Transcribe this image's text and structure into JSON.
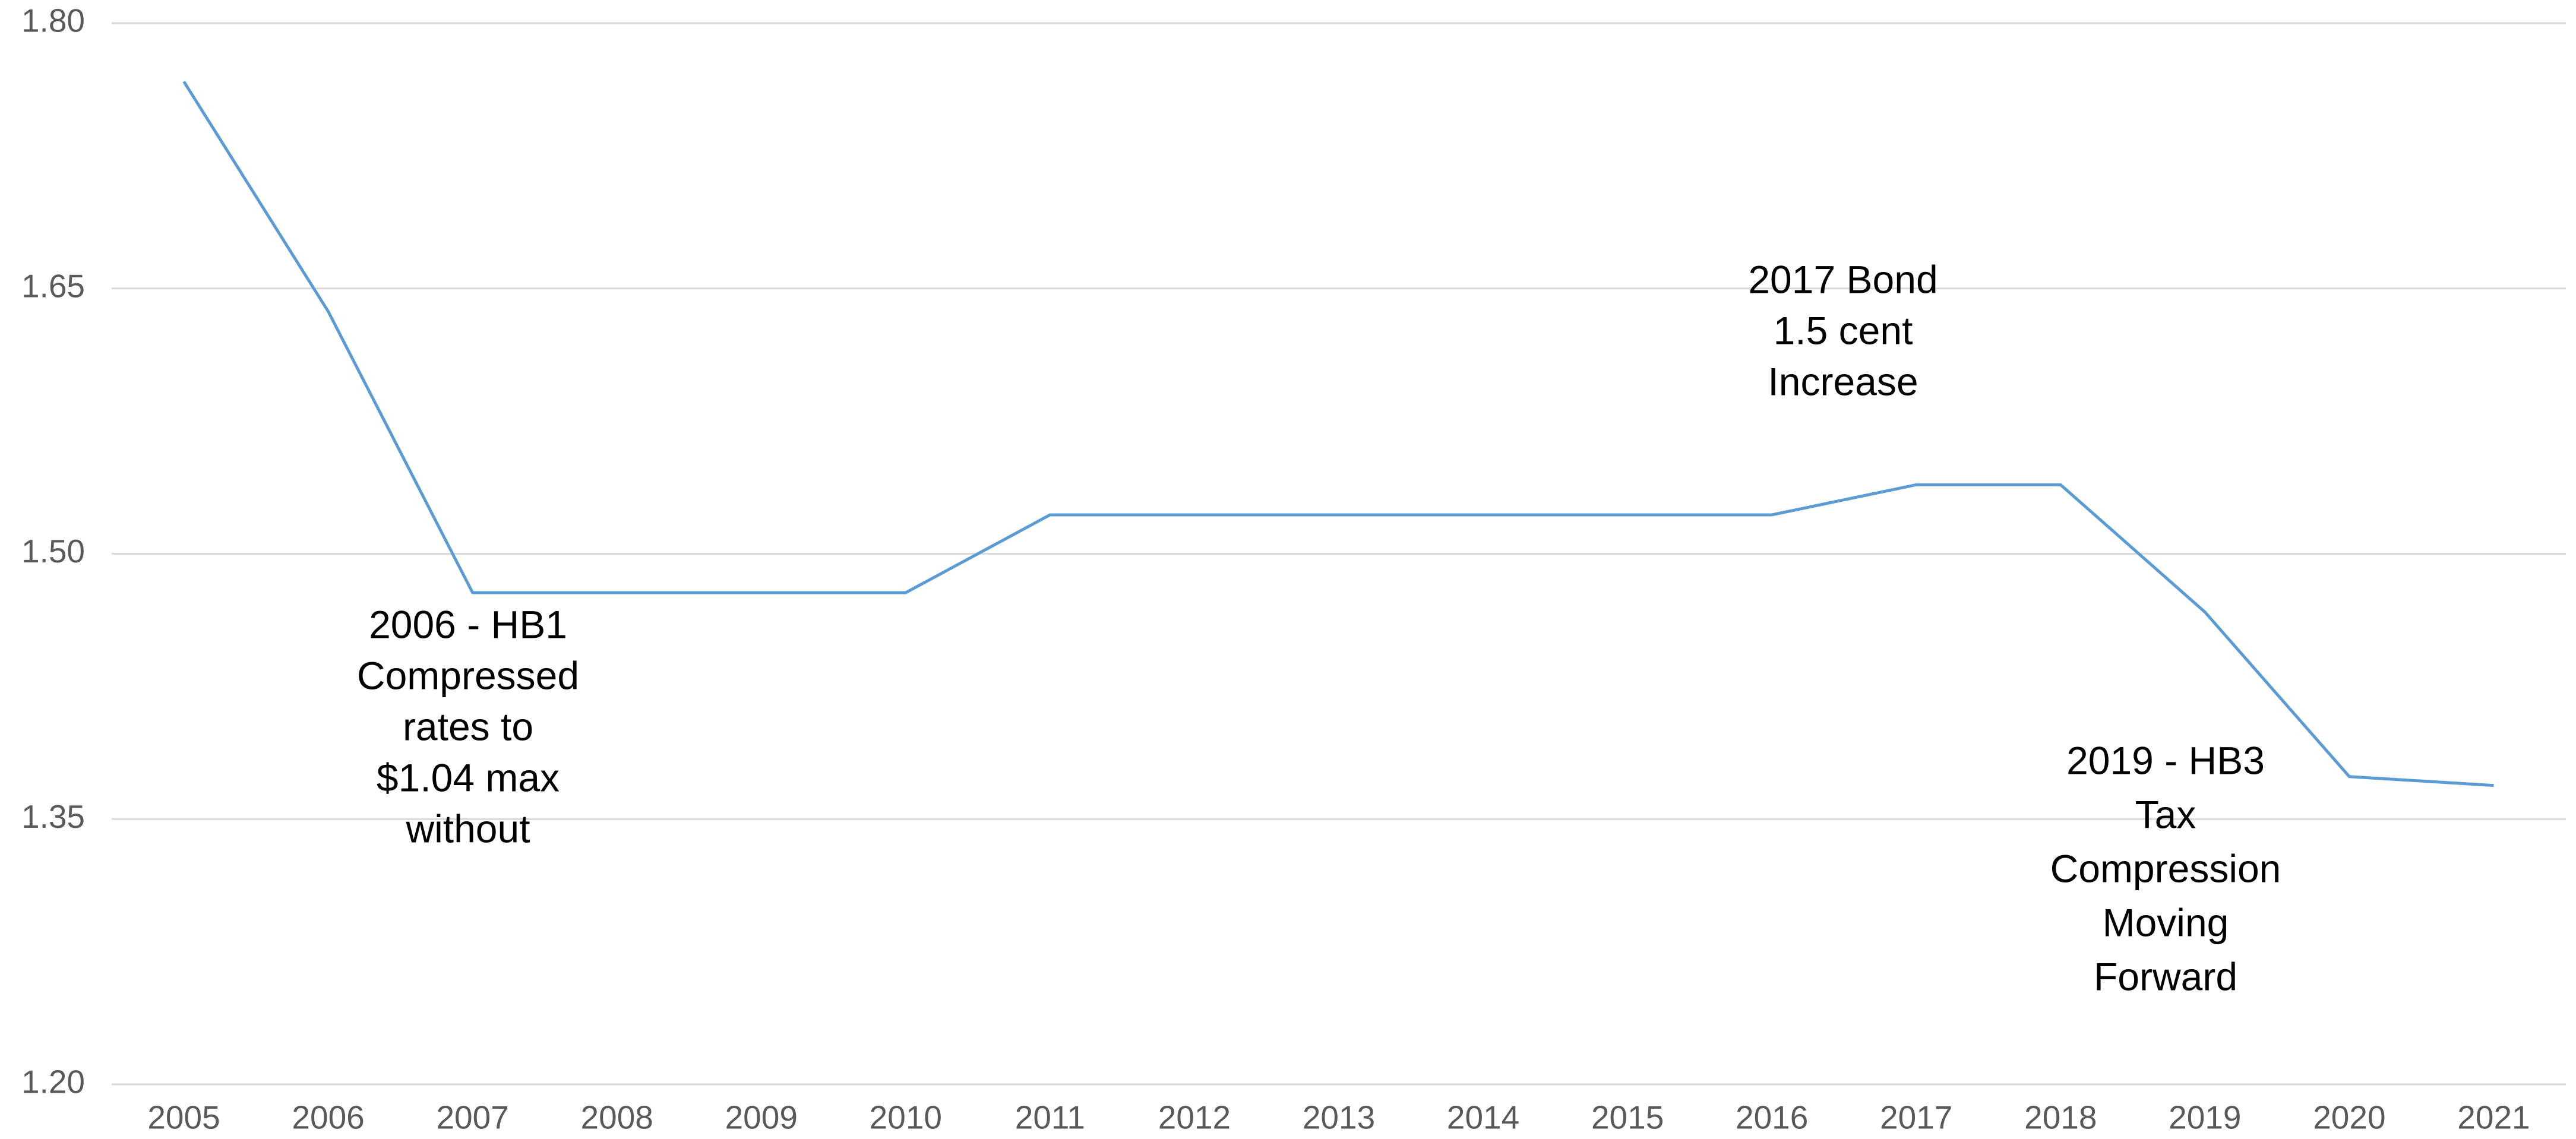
{
  "chart_data": {
    "type": "line",
    "categories": [
      "2005",
      "2006",
      "2007",
      "2008",
      "2009",
      "2010",
      "2011",
      "2012",
      "2013",
      "2014",
      "2015",
      "2016",
      "2017",
      "2018",
      "2019",
      "2020",
      "2021"
    ],
    "series": [
      {
        "color": "#5b9bd5",
        "values": [
          1.767,
          1.637,
          1.478,
          1.478,
          1.478,
          1.478,
          1.522,
          1.522,
          1.522,
          1.522,
          1.522,
          1.522,
          1.539,
          1.539,
          1.467,
          1.374,
          1.369
        ]
      }
    ],
    "ylim": [
      1.2,
      1.8
    ],
    "yticks": [
      {
        "value": 1.2,
        "label": "1.20"
      },
      {
        "value": 1.35,
        "label": "1.35"
      },
      {
        "value": 1.5,
        "label": "1.50"
      },
      {
        "value": 1.65,
        "label": "1.65"
      },
      {
        "value": 1.8,
        "label": "1.80"
      }
    ],
    "grid": true,
    "annotations": [
      {
        "lines": [
          "2006 - HB1",
          "Compressed",
          "rates to",
          "$1.04 max",
          "without"
        ]
      },
      {
        "lines": [
          "2017 Bond",
          "1.5 cent",
          "Increase"
        ]
      },
      {
        "lines": [
          "2019 - HB3",
          "Tax",
          "Compression",
          "Moving",
          "Forward"
        ]
      }
    ]
  }
}
